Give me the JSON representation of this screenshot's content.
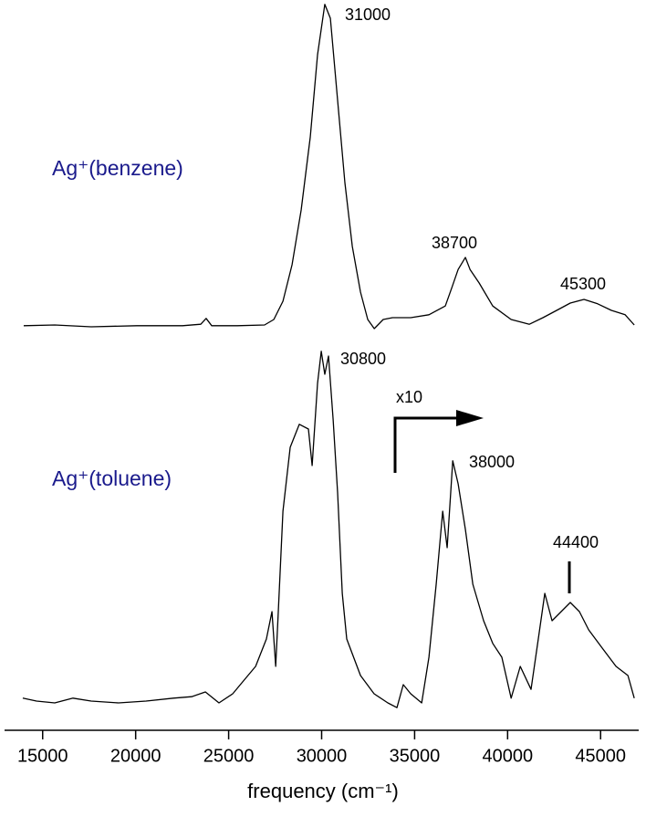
{
  "chart_data": {
    "type": "line",
    "xlabel": "frequency (cm⁻¹)",
    "xlim": [
      13000,
      47000
    ],
    "xticks": [
      15000,
      20000,
      25000,
      30000,
      35000,
      40000,
      45000
    ],
    "ylim": [
      0,
      100
    ],
    "series": [
      {
        "name": "Ag⁺(benzene)",
        "color": "#000000",
        "x": [
          13980,
          15650,
          17610,
          20060,
          22520,
          23500,
          23790,
          24090,
          25460,
          26930,
          27430,
          27920,
          28410,
          28900,
          29390,
          29780,
          30170,
          30470,
          30860,
          31250,
          31650,
          32090,
          32480,
          32830,
          33310,
          33810,
          34790,
          35770,
          36650,
          37000,
          37340,
          37730,
          37980,
          38470,
          39200,
          40190,
          41170,
          41900,
          42640,
          43370,
          44110,
          44840,
          45580,
          46320,
          46810
        ],
        "values": [
          55.4,
          55.5,
          55.25,
          55.4,
          55.4,
          55.6,
          56.4,
          55.4,
          55.4,
          55.5,
          56.25,
          58.75,
          63.75,
          71.25,
          81.25,
          92.5,
          99.4,
          97.5,
          86.25,
          75,
          66.25,
          60,
          56.25,
          55,
          56.25,
          56.5,
          56.5,
          56.9,
          58.1,
          60.6,
          63.1,
          64.75,
          63.1,
          61.25,
          58.1,
          56.25,
          55.6,
          56.5,
          57.5,
          58.5,
          59,
          58.4,
          57.5,
          56.9,
          55.5
        ]
      },
      {
        "name": "Ag⁺(toluene)",
        "color": "#000000",
        "x": [
          13930,
          14670,
          15650,
          16630,
          17610,
          19080,
          20560,
          22030,
          23010,
          23750,
          24480,
          25220,
          25710,
          26450,
          27030,
          27330,
          27530,
          27670,
          27920,
          28310,
          28800,
          29290,
          29490,
          29780,
          29980,
          30170,
          30370,
          30620,
          30860,
          31110,
          31350,
          32090,
          32820,
          33560,
          34050,
          34390,
          34790,
          35380,
          35770,
          36160,
          36510,
          36750,
          37050,
          37340,
          37730,
          38130,
          38710,
          39200,
          39690,
          40190,
          40680,
          41260,
          41650,
          42000,
          42390,
          42880,
          43370,
          43860,
          44360,
          45090,
          45830,
          46470,
          46810
        ],
        "values": [
          4.4,
          4,
          3.75,
          4.4,
          4,
          3.75,
          4,
          4.4,
          4.6,
          5.25,
          3.75,
          5,
          6.5,
          8.75,
          12.5,
          16.25,
          8.75,
          16.25,
          30,
          38.75,
          41.9,
          41.25,
          36.25,
          47.5,
          51.9,
          48.75,
          51.25,
          42.5,
          32.5,
          18.75,
          12.5,
          7.5,
          5,
          3.75,
          3.1,
          6.25,
          5,
          3.75,
          10,
          20,
          30,
          25,
          36.9,
          33.75,
          27.5,
          20,
          15,
          11.9,
          10,
          4.4,
          8.75,
          5.6,
          12.5,
          18.75,
          15,
          16.25,
          17.5,
          16.25,
          13.75,
          11.25,
          8.75,
          7.5,
          4.4
        ]
      }
    ],
    "annotations": [
      "31000",
      "38700",
      "45300",
      "30800",
      "x10",
      "38000",
      "44400"
    ]
  }
}
